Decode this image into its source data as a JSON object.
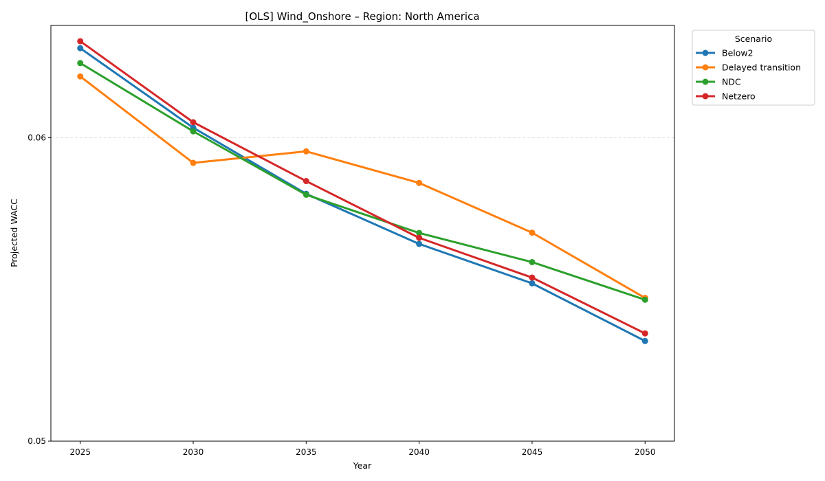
{
  "chart_data": {
    "type": "line",
    "title": "[OLS] Wind_Onshore – Region: North America",
    "xlabel": "Year",
    "ylabel": "Projected WACC",
    "x": [
      2025,
      2030,
      2035,
      2040,
      2045,
      2050
    ],
    "xlim": [
      2023.7,
      2051.3
    ],
    "ylim": [
      0.05,
      0.0637
    ],
    "yticks": [
      0.05,
      0.06
    ],
    "ytick_labels": [
      "0.05",
      "0.06"
    ],
    "grid": "y dashed",
    "legend": {
      "title": "Scenario",
      "placement": "outside top-right"
    },
    "series": [
      {
        "name": "Below2",
        "color": "#1f77b4",
        "values": [
          0.06295,
          0.06033,
          0.05815,
          0.0565,
          0.0552,
          0.0533
        ]
      },
      {
        "name": "Delayed transition",
        "color": "#ff7f0e",
        "values": [
          0.06202,
          0.05917,
          0.05955,
          0.05851,
          0.05687,
          0.05472
        ]
      },
      {
        "name": "NDC",
        "color": "#2ca02c",
        "values": [
          0.06246,
          0.06021,
          0.05812,
          0.05686,
          0.0559,
          0.05466
        ]
      },
      {
        "name": "Netzero",
        "color": "#d62728",
        "values": [
          0.06318,
          0.06051,
          0.05857,
          0.0567,
          0.05539,
          0.05355
        ]
      }
    ]
  }
}
